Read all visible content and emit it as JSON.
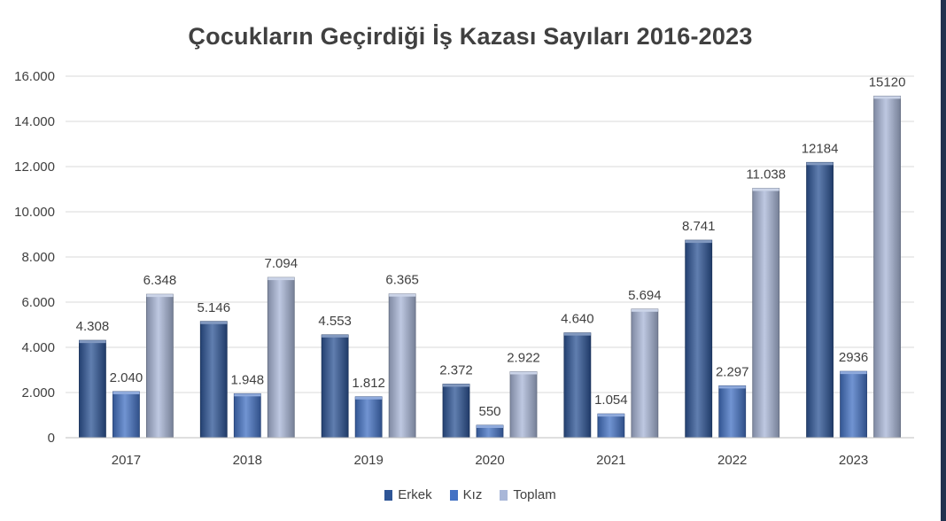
{
  "chart_data": {
    "type": "bar",
    "title": "Çocukların Geçirdiği İş Kazası Sayıları 2016-2023",
    "xlabel": "",
    "ylabel": "",
    "ylim": [
      0,
      16000
    ],
    "yticks": [
      0,
      2000,
      4000,
      6000,
      8000,
      10000,
      12000,
      14000,
      16000
    ],
    "ytick_labels": [
      "0",
      "2.000",
      "4.000",
      "6.000",
      "8.000",
      "10.000",
      "12.000",
      "14.000",
      "16.000"
    ],
    "grid": true,
    "legend_position": "bottom",
    "categories": [
      "2017",
      "2018",
      "2019",
      "2020",
      "2021",
      "2022",
      "2023"
    ],
    "series": [
      {
        "name": "Erkek",
        "color": "#2e5596",
        "values": [
          4308,
          5146,
          4553,
          2372,
          4640,
          8741,
          12184
        ],
        "labels": [
          "4.308",
          "5.146",
          "4.553",
          "2.372",
          "4.640",
          "8.741",
          "12184"
        ]
      },
      {
        "name": "Kız",
        "color": "#4472c4",
        "values": [
          2040,
          1948,
          1812,
          550,
          1054,
          2297,
          2936
        ],
        "labels": [
          "2.040",
          "1.948",
          "1.812",
          "550",
          "1.054",
          "2.297",
          "2936"
        ]
      },
      {
        "name": "Toplam",
        "color": "#a9b7d8",
        "values": [
          6348,
          7094,
          6365,
          2922,
          5694,
          11038,
          15120
        ],
        "labels": [
          "6.348",
          "7.094",
          "6.365",
          "2.922",
          "5.694",
          "11.038",
          "15120"
        ]
      }
    ]
  }
}
